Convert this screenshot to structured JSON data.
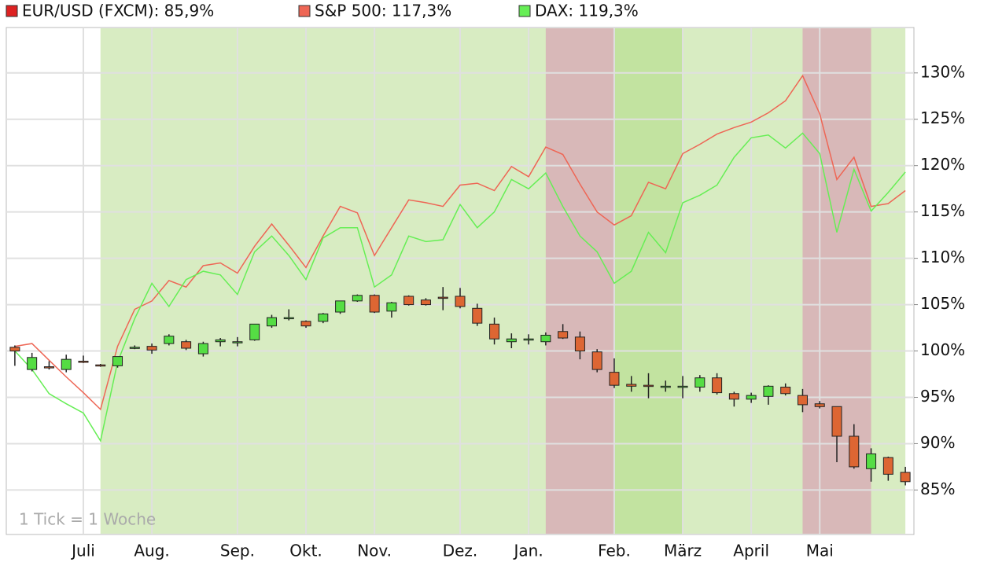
{
  "chart_data": {
    "type": "candlestick",
    "candle_name": "EUR/USD (FXCM): 85,9%",
    "candle_color": "#dd2222",
    "up_color": "#55dd44",
    "down_color": "#dd6633",
    "annotation": "1 Tick = 1 Woche",
    "categories": [
      null,
      null,
      null,
      null,
      "Juli",
      null,
      null,
      null,
      "Aug.",
      null,
      null,
      null,
      null,
      "Sep.",
      null,
      null,
      null,
      "Okt.",
      null,
      null,
      null,
      "Nov.",
      null,
      null,
      null,
      null,
      "Dez.",
      null,
      null,
      null,
      "Jan.",
      null,
      null,
      null,
      null,
      "Feb.",
      null,
      null,
      null,
      "März",
      null,
      null,
      null,
      "April",
      null,
      null,
      null,
      "Mai",
      null,
      null,
      null,
      null,
      null
    ],
    "open": [
      100.4,
      98.0,
      98.3,
      98.0,
      98.9,
      98.5,
      98.4,
      100.3,
      100.5,
      100.8,
      101.0,
      99.7,
      101.0,
      101.0,
      101.2,
      102.7,
      103.5,
      103.2,
      103.2,
      104.2,
      105.4,
      106.0,
      104.3,
      105.9,
      105.5,
      105.8,
      105.9,
      104.6,
      102.9,
      101.0,
      101.2,
      101.0,
      102.1,
      101.5,
      99.9,
      97.7,
      96.4,
      96.3,
      96.2,
      96.1,
      96.1,
      97.1,
      95.4,
      94.8,
      95.1,
      96.1,
      95.2,
      94.3,
      94.0,
      90.8,
      87.3,
      88.5,
      86.9
    ],
    "high": [
      100.6,
      99.8,
      98.9,
      99.6,
      99.5,
      98.6,
      99.4,
      100.6,
      100.8,
      101.8,
      101.2,
      101.0,
      101.4,
      101.5,
      102.9,
      103.9,
      104.5,
      103.3,
      104.1,
      105.4,
      106.1,
      106.1,
      105.3,
      106.0,
      105.7,
      106.9,
      106.8,
      105.1,
      103.6,
      101.9,
      101.8,
      102.0,
      102.9,
      102.1,
      100.2,
      99.2,
      97.3,
      97.6,
      96.8,
      97.3,
      97.4,
      97.6,
      95.6,
      95.5,
      96.3,
      96.5,
      95.9,
      94.6,
      94.0,
      92.1,
      89.5,
      88.6,
      87.5
    ],
    "low": [
      98.4,
      97.8,
      98.0,
      97.7,
      98.7,
      98.3,
      98.2,
      100.2,
      99.7,
      100.6,
      100.1,
      99.4,
      100.5,
      100.5,
      101.1,
      102.5,
      103.3,
      102.5,
      103.0,
      104.0,
      105.3,
      104.1,
      103.6,
      104.9,
      104.9,
      104.4,
      104.6,
      102.7,
      100.7,
      100.3,
      100.7,
      100.6,
      101.3,
      99.1,
      97.7,
      96.0,
      95.6,
      94.9,
      95.6,
      94.9,
      95.6,
      95.3,
      94.0,
      94.4,
      94.2,
      95.2,
      93.4,
      93.8,
      88.0,
      87.3,
      85.9,
      86.0,
      85.5
    ],
    "close": [
      100.0,
      99.3,
      98.2,
      99.1,
      98.8,
      98.4,
      99.4,
      100.4,
      100.1,
      101.6,
      100.3,
      100.8,
      101.2,
      101.0,
      102.9,
      103.6,
      103.6,
      102.7,
      104.0,
      105.4,
      106.0,
      104.2,
      105.2,
      105.0,
      105.0,
      105.7,
      104.8,
      103.0,
      101.3,
      101.3,
      101.3,
      101.7,
      101.4,
      100.0,
      98.0,
      96.3,
      96.2,
      96.2,
      96.2,
      96.2,
      97.1,
      95.5,
      94.8,
      95.2,
      96.2,
      95.4,
      94.2,
      94.0,
      90.8,
      87.5,
      88.9,
      86.7,
      85.9
    ],
    "series": [
      {
        "name": "S&P 500: 117,3%",
        "color": "#ee6655",
        "values": [
          100.5,
          100.8,
          99.0,
          97.2,
          95.5,
          93.7,
          100.5,
          104.5,
          105.4,
          107.6,
          106.9,
          109.2,
          109.5,
          108.4,
          111.3,
          113.7,
          111.4,
          109.0,
          112.4,
          115.6,
          114.9,
          110.3,
          113.3,
          116.3,
          116.0,
          115.6,
          117.9,
          118.1,
          117.3,
          119.9,
          118.8,
          122.0,
          121.2,
          118.0,
          115.0,
          113.6,
          114.6,
          118.2,
          117.5,
          121.3,
          122.3,
          123.4,
          124.1,
          124.7,
          125.7,
          127.0,
          129.7,
          125.6,
          118.5,
          120.9,
          115.6,
          115.9,
          117.3
        ]
      },
      {
        "name": "DAX: 119,3%",
        "color": "#66ee55",
        "values": [
          100.0,
          98.0,
          95.4,
          94.3,
          93.3,
          90.3,
          98.8,
          103.5,
          107.3,
          104.8,
          107.7,
          108.6,
          108.2,
          106.1,
          110.7,
          112.4,
          110.3,
          107.7,
          112.2,
          113.3,
          113.3,
          106.9,
          108.2,
          112.4,
          111.8,
          112.0,
          115.8,
          113.3,
          115.0,
          118.5,
          117.5,
          119.2,
          115.6,
          112.4,
          110.7,
          107.3,
          108.6,
          112.8,
          110.6,
          116.0,
          116.8,
          117.9,
          120.9,
          123.0,
          123.3,
          121.9,
          123.5,
          121.3,
          112.8,
          119.6,
          115.1,
          117.1,
          119.3
        ]
      }
    ],
    "regions": [
      {
        "from": 5,
        "to": 52,
        "color": "#d8ecc2"
      },
      {
        "from": 31,
        "to": 35,
        "color": "#d8b8b8"
      },
      {
        "from": 35,
        "to": 39,
        "color": "#c2e3a0"
      },
      {
        "from": 46,
        "to": 50,
        "color": "#d8b8b8"
      }
    ],
    "ylim": [
      80.2,
      134.9
    ],
    "yticks": [
      {
        "value": 85,
        "label": "85%"
      },
      {
        "value": 90,
        "label": "90%"
      },
      {
        "value": 95,
        "label": "95%"
      },
      {
        "value": 100,
        "label": "100%"
      },
      {
        "value": 105,
        "label": "105%"
      },
      {
        "value": 110,
        "label": "110%"
      },
      {
        "value": 115,
        "label": "115%"
      },
      {
        "value": 120,
        "label": "120%"
      },
      {
        "value": 125,
        "label": "125%"
      },
      {
        "value": 130,
        "label": "130%"
      }
    ],
    "grid": true
  }
}
